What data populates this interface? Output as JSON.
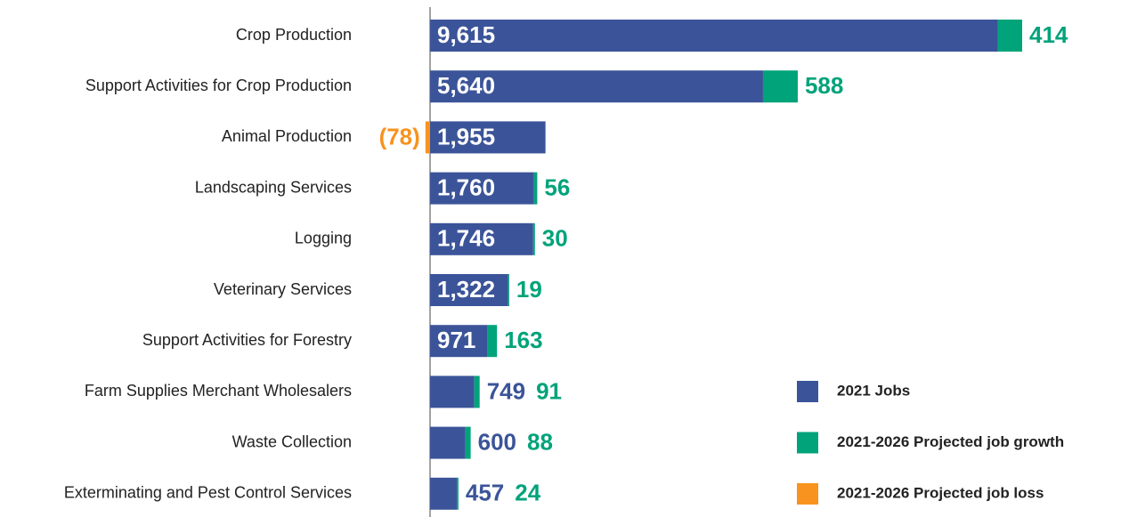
{
  "chart_data": {
    "type": "stacked-bar-horizontal",
    "categories": [
      "Crop Production",
      "Support Activities for Crop Production",
      "Animal Production",
      "Landscaping Services",
      "Logging",
      "Veterinary Services",
      "Support Activities for Forestry",
      "Farm Supplies Merchant Wholesalers",
      "Waste Collection",
      "Exterminating and Pest Control Services"
    ],
    "series": [
      {
        "name": "2021 Jobs",
        "color": "#3b5499",
        "values": [
          9615,
          5640,
          1955,
          1760,
          1746,
          1322,
          971,
          749,
          600,
          457
        ],
        "value_labels": [
          "9,615",
          "5,640",
          "1,955",
          "1,760",
          "1,746",
          "1,322",
          "971",
          "749",
          "600",
          "457"
        ]
      },
      {
        "name": "2021-2026 Projected job growth",
        "color": "#00a37a",
        "values": [
          414,
          588,
          null,
          56,
          30,
          19,
          163,
          91,
          88,
          24
        ]
      },
      {
        "name": "2021-2026 Projected job loss",
        "color": "#f7931e",
        "values": [
          null,
          null,
          -78,
          null,
          null,
          null,
          null,
          null,
          null,
          null
        ],
        "value_labels": [
          null,
          null,
          "(78)",
          null,
          null,
          null,
          null,
          null,
          null,
          null
        ]
      }
    ]
  }
}
